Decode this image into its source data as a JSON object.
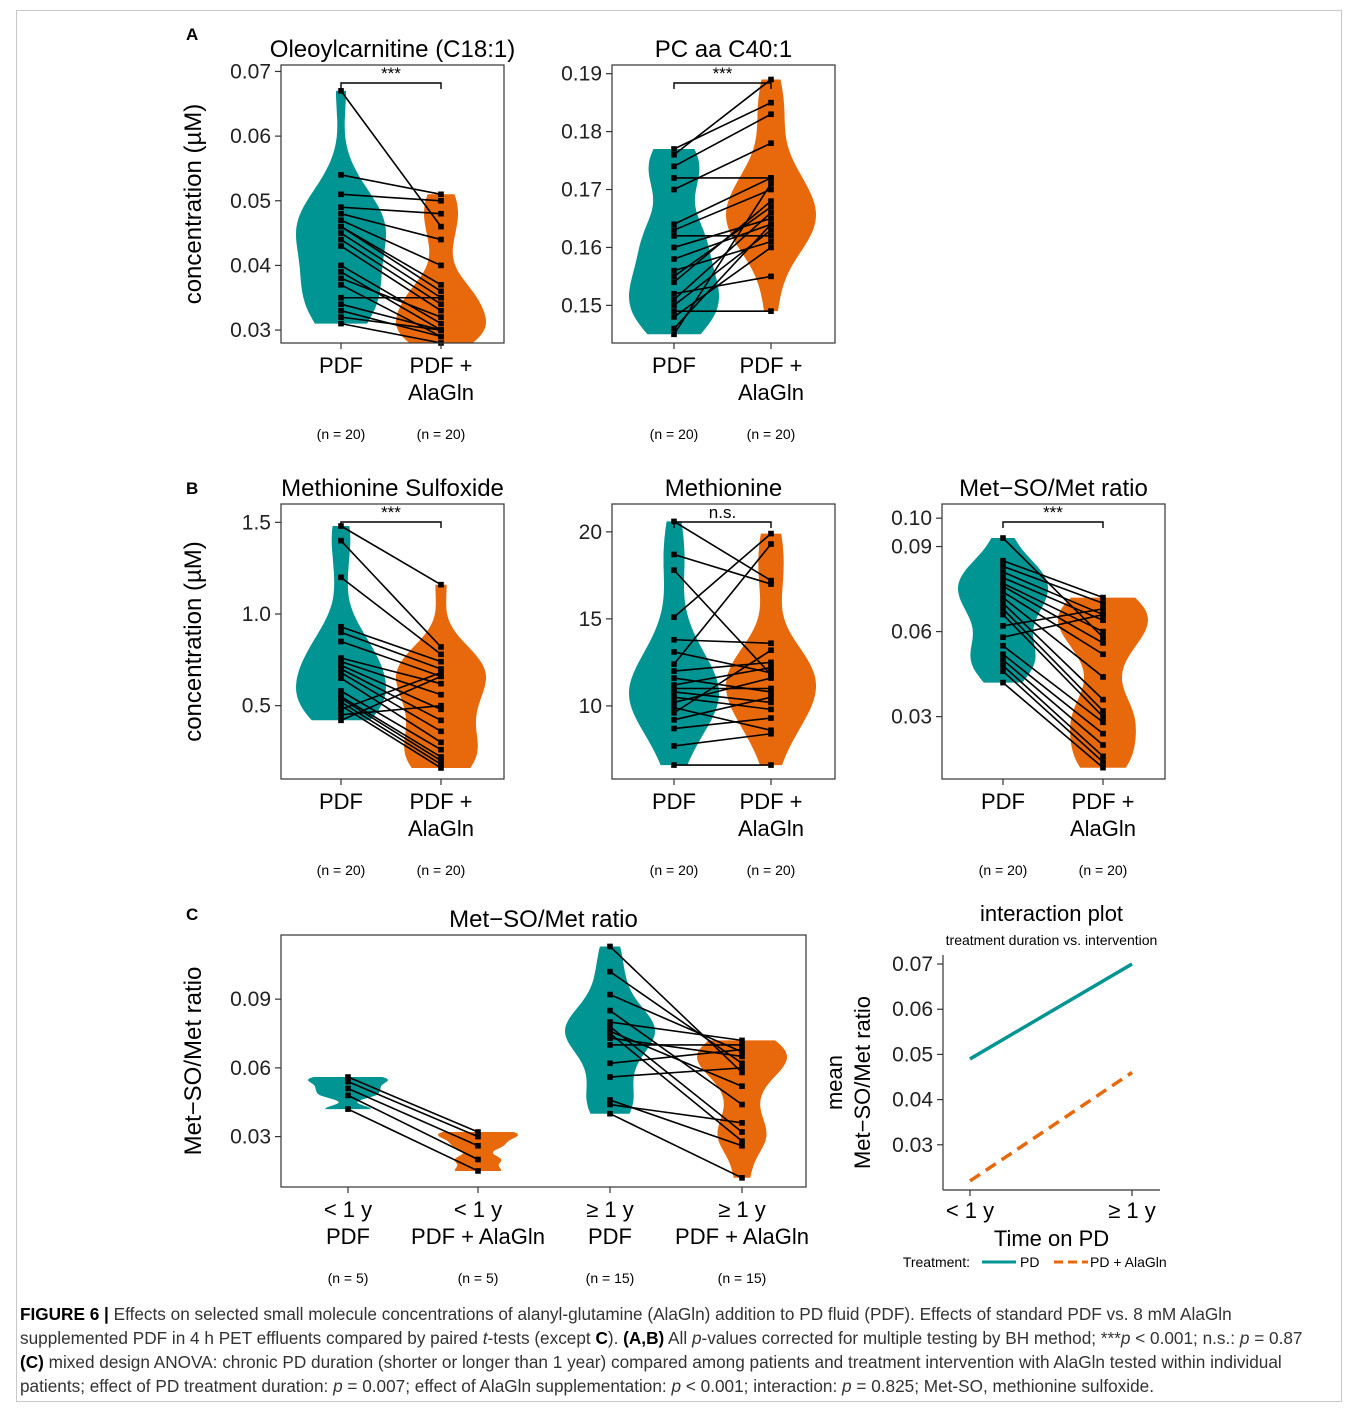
{
  "colors": {
    "teal": "#009593",
    "orange": "#e8680c",
    "line": "#000000"
  },
  "panel_letters": [
    "A",
    "B",
    "C"
  ],
  "chart_data": [
    {
      "id": "A1",
      "type": "violin",
      "title": "Oleoylcarnitine (C18:1)",
      "ylabel": "concentration (µM)",
      "ylim": [
        0.028,
        0.071
      ],
      "yticks": [
        0.03,
        0.04,
        0.05,
        0.06,
        0.07
      ],
      "ytick_labels": [
        "0.03",
        "0.04",
        "0.05",
        "0.06",
        "0.07"
      ],
      "categories": [
        "PDF",
        "PDF +\nAlaGln"
      ],
      "ns": [
        "(n = 20)",
        "(n = 20)"
      ],
      "significance": "***",
      "pairs": [
        [
          0.067,
          0.046
        ],
        [
          0.054,
          0.051
        ],
        [
          0.051,
          0.05
        ],
        [
          0.049,
          0.048
        ],
        [
          0.048,
          0.044
        ],
        [
          0.047,
          0.04
        ],
        [
          0.046,
          0.037
        ],
        [
          0.046,
          0.036
        ],
        [
          0.045,
          0.035
        ],
        [
          0.044,
          0.034
        ],
        [
          0.043,
          0.033
        ],
        [
          0.04,
          0.031
        ],
        [
          0.039,
          0.03
        ],
        [
          0.038,
          0.032
        ],
        [
          0.037,
          0.029
        ],
        [
          0.035,
          0.035
        ],
        [
          0.034,
          0.03
        ],
        [
          0.033,
          0.029
        ],
        [
          0.032,
          0.03
        ],
        [
          0.031,
          0.028
        ]
      ]
    },
    {
      "id": "A2",
      "type": "violin",
      "title": "PC aa C40:1",
      "ylabel": "",
      "ylim": [
        0.1435,
        0.1915
      ],
      "yticks": [
        0.15,
        0.16,
        0.17,
        0.18,
        0.19
      ],
      "ytick_labels": [
        "0.15",
        "0.16",
        "0.17",
        "0.18",
        "0.19"
      ],
      "categories": [
        "PDF",
        "PDF +\nAlaGln"
      ],
      "ns": [
        "(n = 20)",
        "(n = 20)"
      ],
      "significance": "***",
      "pairs": [
        [
          0.177,
          0.185
        ],
        [
          0.176,
          0.189
        ],
        [
          0.174,
          0.183
        ],
        [
          0.172,
          0.172
        ],
        [
          0.17,
          0.178
        ],
        [
          0.164,
          0.172
        ],
        [
          0.163,
          0.17
        ],
        [
          0.162,
          0.162
        ],
        [
          0.16,
          0.165
        ],
        [
          0.158,
          0.164
        ],
        [
          0.156,
          0.161
        ],
        [
          0.155,
          0.167
        ],
        [
          0.154,
          0.168
        ],
        [
          0.152,
          0.155
        ],
        [
          0.151,
          0.166
        ],
        [
          0.15,
          0.163
        ],
        [
          0.149,
          0.149
        ],
        [
          0.148,
          0.16
        ],
        [
          0.146,
          0.164
        ],
        [
          0.145,
          0.171
        ]
      ]
    },
    {
      "id": "B1",
      "type": "violin",
      "title": "Methionine Sulfoxide",
      "ylabel": "concentration (µM)",
      "ylim": [
        0.1,
        1.6
      ],
      "yticks": [
        0.5,
        1.0,
        1.5
      ],
      "ytick_labels": [
        "0.5",
        "1.0",
        "1.5"
      ],
      "categories": [
        "PDF",
        "PDF +\nAlaGln"
      ],
      "ns": [
        "(n = 20)",
        "(n = 20)"
      ],
      "significance": "***",
      "pairs": [
        [
          1.48,
          1.16
        ],
        [
          1.4,
          0.82
        ],
        [
          1.2,
          0.78
        ],
        [
          0.93,
          0.74
        ],
        [
          0.9,
          0.7
        ],
        [
          0.85,
          0.66
        ],
        [
          0.76,
          0.62
        ],
        [
          0.74,
          0.56
        ],
        [
          0.72,
          0.48
        ],
        [
          0.7,
          0.42
        ],
        [
          0.68,
          0.36
        ],
        [
          0.65,
          0.3
        ],
        [
          0.58,
          0.26
        ],
        [
          0.55,
          0.22
        ],
        [
          0.54,
          0.2
        ],
        [
          0.52,
          0.18
        ],
        [
          0.5,
          0.16
        ],
        [
          0.48,
          0.68
        ],
        [
          0.45,
          0.5
        ],
        [
          0.42,
          0.66
        ]
      ]
    },
    {
      "id": "B2",
      "type": "violin",
      "title": "Methionine",
      "ylabel": "",
      "ylim": [
        5.8,
        21.6
      ],
      "yticks": [
        10,
        15,
        20
      ],
      "ytick_labels": [
        "10",
        "15",
        "20"
      ],
      "categories": [
        "PDF",
        "PDF +\nAlaGln"
      ],
      "ns": [
        "(n = 20)",
        "(n = 20)"
      ],
      "significance": "n.s.",
      "pairs": [
        [
          20.6,
          17.2
        ],
        [
          18.7,
          17.0
        ],
        [
          17.8,
          11.8
        ],
        [
          15.1,
          19.9
        ],
        [
          13.8,
          13.6
        ],
        [
          13.1,
          11.9
        ],
        [
          12.4,
          19.3
        ],
        [
          12.0,
          12.5
        ],
        [
          11.6,
          10.8
        ],
        [
          11.2,
          12.2
        ],
        [
          11.0,
          11.0
        ],
        [
          10.8,
          10.2
        ],
        [
          10.5,
          9.8
        ],
        [
          10.2,
          11.6
        ],
        [
          9.9,
          8.6
        ],
        [
          9.6,
          13.2
        ],
        [
          9.2,
          10.5
        ],
        [
          8.7,
          9.3
        ],
        [
          7.7,
          8.4
        ],
        [
          6.6,
          6.6
        ]
      ]
    },
    {
      "id": "B3",
      "type": "violin",
      "title": "Met−SO/Met ratio",
      "ylabel": "",
      "ylim": [
        0.008,
        0.105
      ],
      "yticks": [
        0.03,
        0.06,
        0.09,
        0.1
      ],
      "ytick_labels": [
        "0.03",
        "0.06",
        "0.09",
        "0.10"
      ],
      "categories": [
        "PDF",
        "PDF +\nAlaGln"
      ],
      "ns": [
        "(n = 20)",
        "(n = 20)"
      ],
      "significance": "***",
      "pairs": [
        [
          0.093,
          0.058
        ],
        [
          0.085,
          0.072
        ],
        [
          0.083,
          0.07
        ],
        [
          0.081,
          0.066
        ],
        [
          0.079,
          0.064
        ],
        [
          0.077,
          0.06
        ],
        [
          0.076,
          0.056
        ],
        [
          0.074,
          0.052
        ],
        [
          0.072,
          0.044
        ],
        [
          0.07,
          0.036
        ],
        [
          0.068,
          0.032
        ],
        [
          0.066,
          0.03
        ],
        [
          0.062,
          0.068
        ],
        [
          0.058,
          0.066
        ],
        [
          0.055,
          0.028
        ],
        [
          0.052,
          0.024
        ],
        [
          0.05,
          0.02
        ],
        [
          0.048,
          0.016
        ],
        [
          0.046,
          0.014
        ],
        [
          0.042,
          0.012
        ]
      ]
    },
    {
      "id": "C1",
      "type": "violin",
      "title": "Met−SO/Met ratio",
      "ylabel": "Met−SO/Met ratio",
      "ylim": [
        0.008,
        0.118
      ],
      "yticks": [
        0.03,
        0.06,
        0.09
      ],
      "ytick_labels": [
        "0.03",
        "0.06",
        "0.09"
      ],
      "categories": [
        "< 1 y\nPDF",
        "< 1 y\nPDF + AlaGln",
        "≥ 1 y\nPDF",
        "≥ 1 y\nPDF + AlaGln"
      ],
      "ns": [
        "(n = 5)",
        "(n = 5)",
        "(n = 15)",
        "(n = 15)"
      ],
      "pairs_short": [
        [
          0.056,
          0.032
        ],
        [
          0.054,
          0.03
        ],
        [
          0.051,
          0.026
        ],
        [
          0.048,
          0.02
        ],
        [
          0.042,
          0.015
        ]
      ],
      "pairs_long": [
        [
          0.113,
          0.058
        ],
        [
          0.102,
          0.062
        ],
        [
          0.092,
          0.067
        ],
        [
          0.085,
          0.044
        ],
        [
          0.08,
          0.072
        ],
        [
          0.078,
          0.032
        ],
        [
          0.076,
          0.052
        ],
        [
          0.075,
          0.028
        ],
        [
          0.073,
          0.065
        ],
        [
          0.07,
          0.07
        ],
        [
          0.062,
          0.068
        ],
        [
          0.056,
          0.06
        ],
        [
          0.046,
          0.026
        ],
        [
          0.044,
          0.036
        ],
        [
          0.04,
          0.012
        ]
      ]
    },
    {
      "id": "C2",
      "type": "line",
      "title": "interaction plot",
      "subtitle": "treatment duration vs. intervention",
      "ylabel": "mean\nMet−SO/Met ratio",
      "xlabel": "Time on PD",
      "categories": [
        "< 1 y",
        "≥ 1 y"
      ],
      "ylim": [
        0.02,
        0.072
      ],
      "yticks": [
        0.03,
        0.04,
        0.05,
        0.06,
        0.07
      ],
      "ytick_labels": [
        "0.03",
        "0.04",
        "0.05",
        "0.06",
        "0.07"
      ],
      "series": [
        {
          "name": "PD",
          "values": [
            0.049,
            0.07
          ],
          "color": "#009593",
          "dash": "solid"
        },
        {
          "name": "PD + AlaGln",
          "values": [
            0.022,
            0.046
          ],
          "color": "#e8680c",
          "dash": "dashed"
        }
      ],
      "legend_title": "Treatment:"
    }
  ],
  "caption": {
    "label": "FIGURE 6 |",
    "text": "Effects on selected small molecule concentrations of alanyl-glutamine (AlaGln) addition to PD fluid (PDF). Effects of standard PDF vs. 8 mM AlaGln supplemented PDF in 4 h PET effluents compared by paired t-tests (except C). (A,B) All p-values corrected for multiple testing by BH method; ***p < 0.001; n.s.: p = 0.87 (C) mixed design ANOVA: chronic PD duration (shorter or longer than 1 year) compared among patients and treatment intervention with AlaGln tested within individual patients; effect of PD treatment duration: p = 0.007; effect of AlaGln supplementation: p < 0.001; interaction: p = 0.825; Met-SO, methionine sulfoxide.",
    "line1": "Effects on selected small molecule concentrations of alanyl-glutamine (AlaGln) addition to PD fluid (PDF). Effects of standard PDF vs. 8 mM AlaGln",
    "line2_a": "supplemented PDF in 4 h PET effluents compared by paired ",
    "line2_b": "-tests (except ",
    "line2_c": "). ",
    "line2_d": "(A,B)",
    "line2_e": " All ",
    "line2_f": "-values corrected for multiple testing by BH method; ***",
    "line2_g": " < 0.001; n.s.:",
    "line3_a": " = 0.87 ",
    "line3_b": "(C)",
    "line3_c": " mixed design ANOVA: chronic PD duration (shorter or longer than 1 year) compared among patients and treatment intervention with AlaGln tested within",
    "line4_a": "individual patients; effect of PD treatment duration: ",
    "line4_b": " = 0.007; effect of AlaGln supplementation: ",
    "line4_c": " < 0.001; interaction: ",
    "line4_d": " = 0.825; Met-SO, methionine sulfoxide.",
    "t": "t",
    "p": "p",
    "C": "C"
  }
}
